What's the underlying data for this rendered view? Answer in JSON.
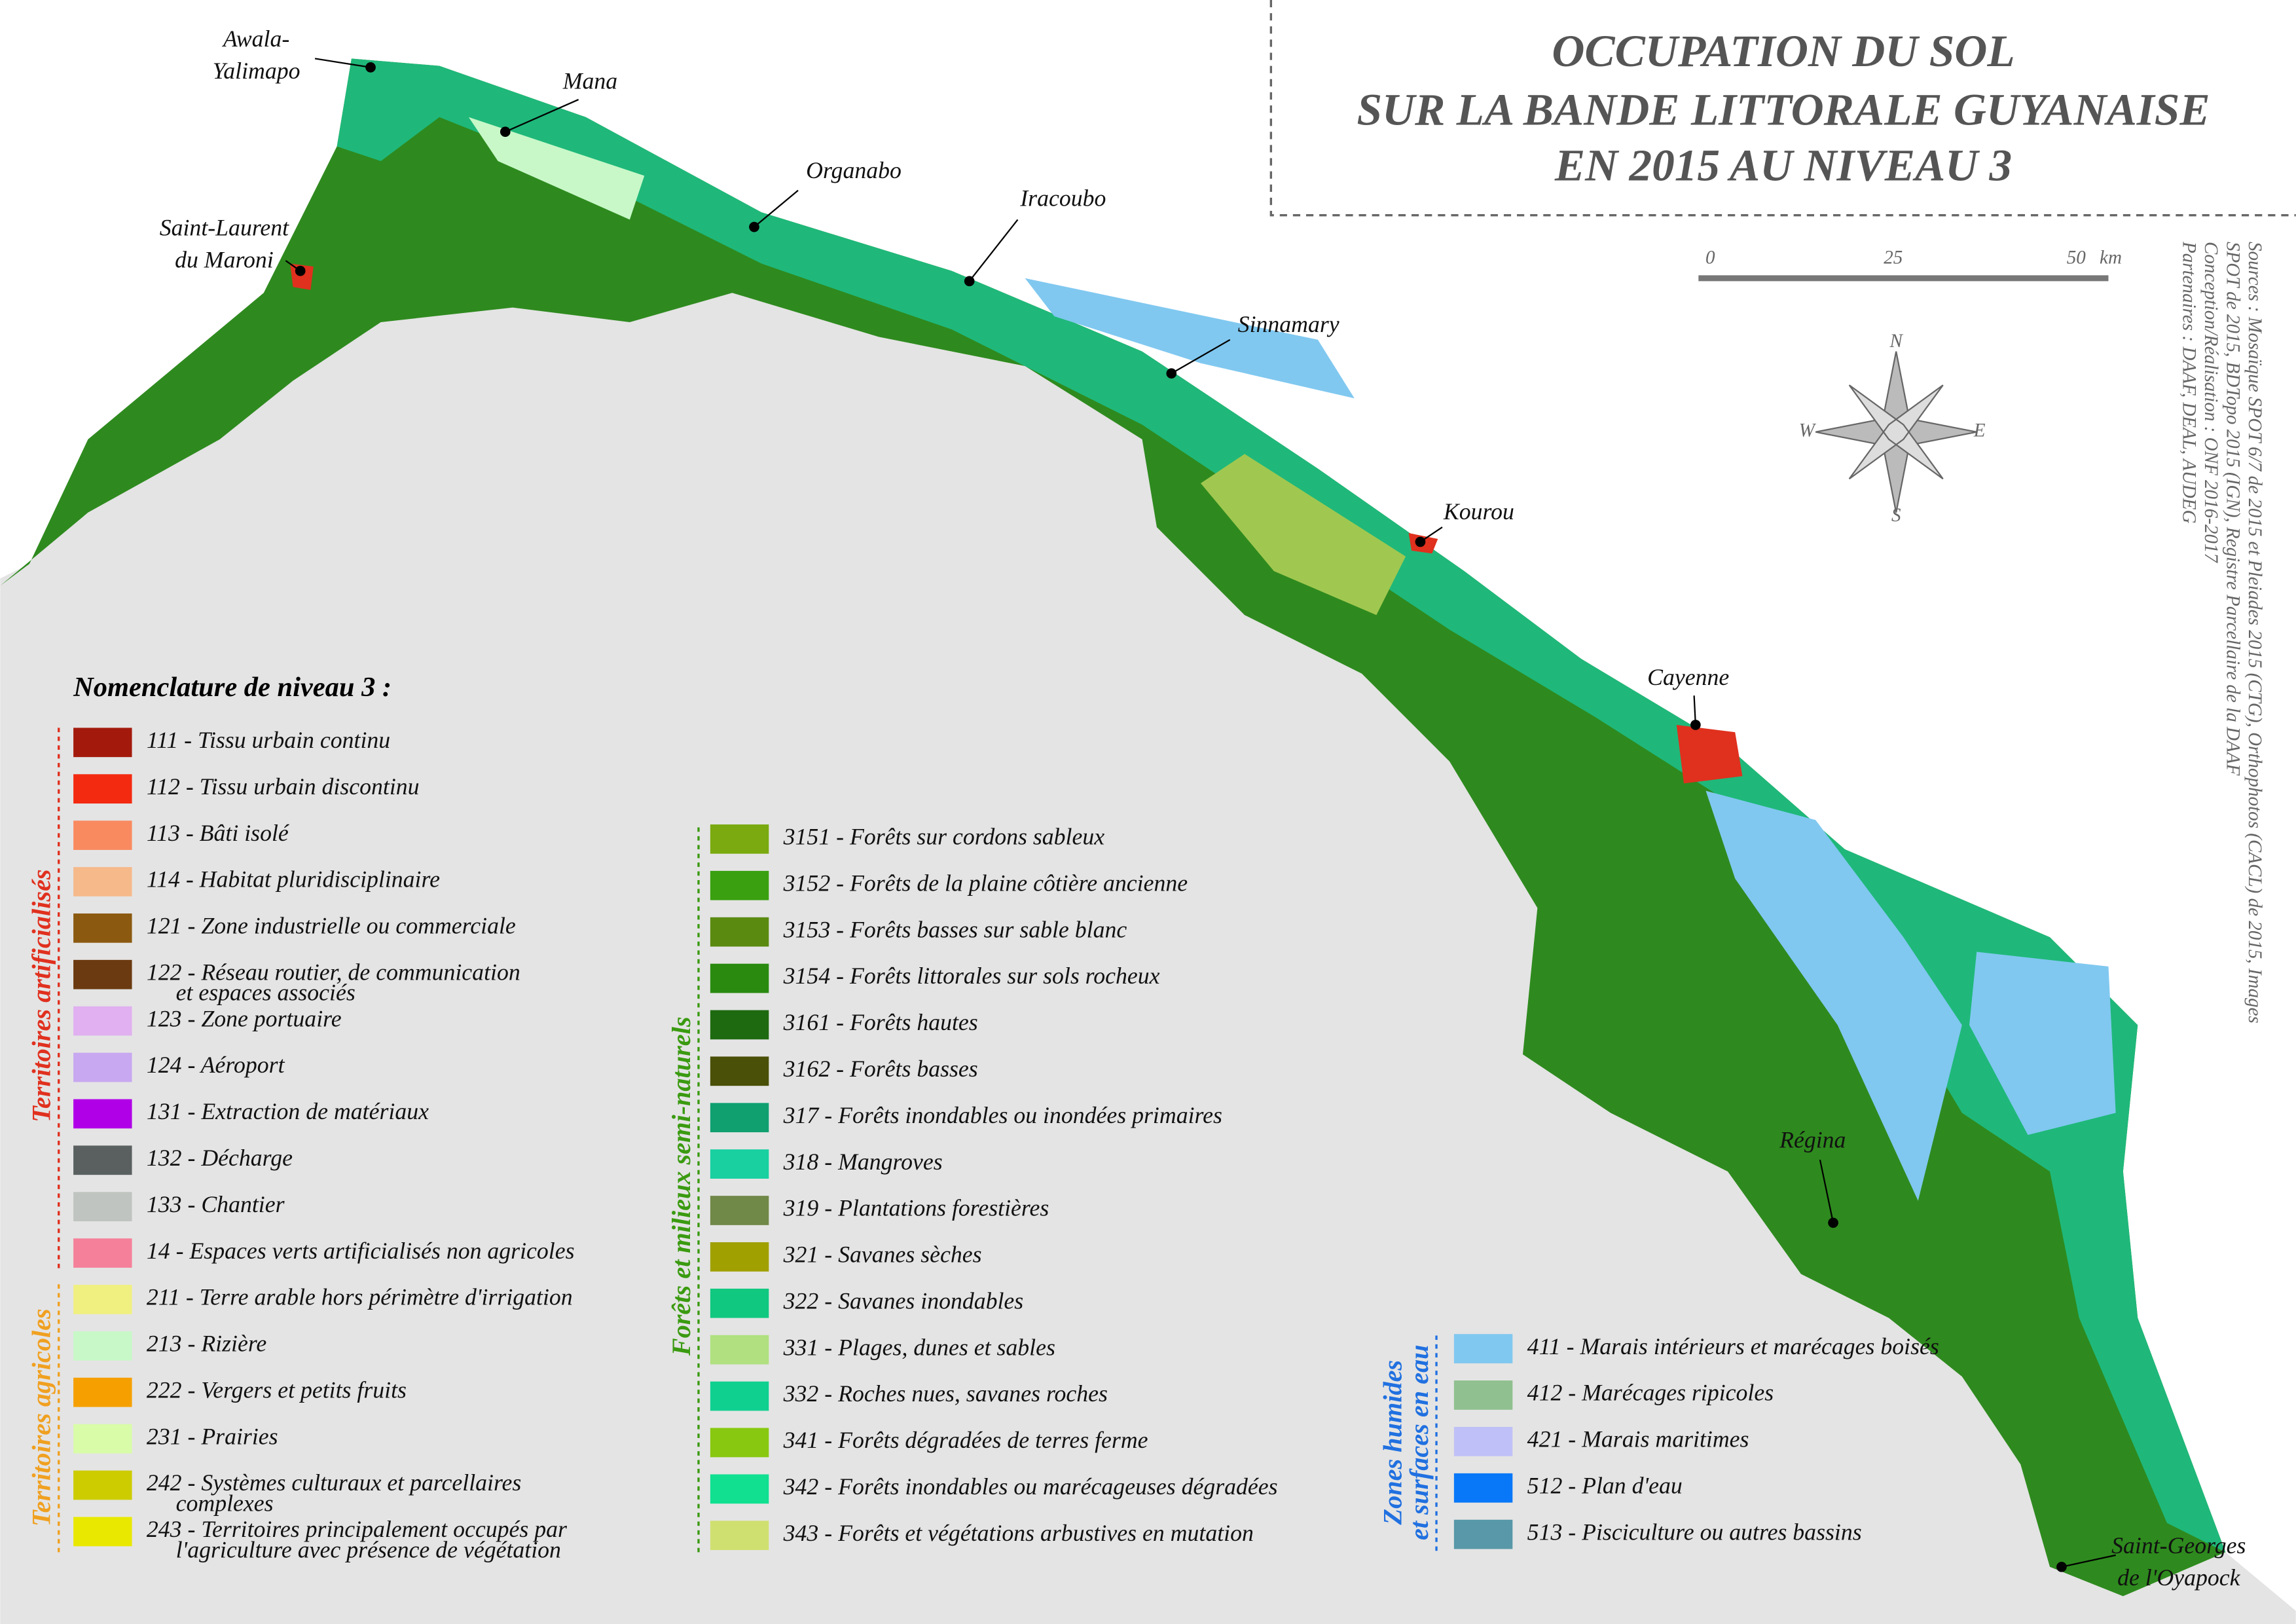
{
  "title": [
    "OCCUPATION DU SOL",
    "SUR LA BANDE LITTORALE GUYANAISE",
    "EN 2015 AU NIVEAU 3"
  ],
  "scale": {
    "labels": [
      "0",
      "25",
      "50"
    ],
    "unit": "km"
  },
  "compass": {
    "n": "N",
    "e": "E",
    "s": "S",
    "w": "W"
  },
  "sources": [
    "Sources : Mosaïque SPOT 6/7 de 2015 et Pleiades 2015 (CTG), Orthophotos (CACL) de 2015, Images",
    "SPOT de 2015, BDTopo 2015 (IGN), Registre Parcellaire de  la DAAF",
    "Conception/Réalisation : ONF 2016-2017",
    "Partenaires : DAAF, DEAL, AUDEG"
  ],
  "towns": [
    {
      "name": [
        "Awala-",
        "Yalimapo"
      ]
    },
    {
      "name": [
        "Mana"
      ]
    },
    {
      "name": [
        "Saint-Laurent",
        "du Maroni"
      ]
    },
    {
      "name": [
        "Organabo"
      ]
    },
    {
      "name": [
        "Iracoubo"
      ]
    },
    {
      "name": [
        "Sinnamary"
      ]
    },
    {
      "name": [
        "Kourou"
      ]
    },
    {
      "name": [
        "Cayenne"
      ]
    },
    {
      "name": [
        "Régina"
      ]
    },
    {
      "name": [
        "Saint-Georges",
        "de l'Oyapock"
      ]
    }
  ],
  "legend": {
    "title": "Nomenclature de niveau 3 :",
    "groups": [
      {
        "label": [
          "Territoires artificialisés"
        ],
        "color": "#e0301e",
        "items": [
          {
            "text": [
              "111 - Tissu urbain continu"
            ],
            "color": "#a31a0c"
          },
          {
            "text": [
              "112 - Tissu urbain discontinu"
            ],
            "color": "#f42a10"
          },
          {
            "text": [
              "113 - Bâti isolé"
            ],
            "color": "#f98a60"
          },
          {
            "text": [
              "114 - Habitat pluridisciplinaire"
            ],
            "color": "#f5b98a"
          },
          {
            "text": [
              "121 - Zone industrielle ou commerciale"
            ],
            "color": "#8b5a10"
          },
          {
            "text": [
              "122 - Réseau routier, de communication",
              "et espaces associés"
            ],
            "color": "#6b3a10"
          },
          {
            "text": [
              "123 - Zone portuaire"
            ],
            "color": "#e0b0f0"
          },
          {
            "text": [
              "124 - Aéroport"
            ],
            "color": "#c8a8f0"
          },
          {
            "text": [
              "131 - Extraction de matériaux"
            ],
            "color": "#b000e8"
          },
          {
            "text": [
              "132 - Décharge"
            ],
            "color": "#5a6060"
          },
          {
            "text": [
              "133 - Chantier"
            ],
            "color": "#c0c4c0"
          },
          {
            "text": [
              "14 - Espaces verts artificialisés non agricoles"
            ],
            "color": "#f5809a"
          }
        ]
      },
      {
        "label": [
          "Territoires agricoles"
        ],
        "color": "#f0a020",
        "items": [
          {
            "text": [
              "211 - Terre arable hors périmètre d'irrigation"
            ],
            "color": "#f0f080"
          },
          {
            "text": [
              "213 - Rizière"
            ],
            "color": "#c8f8c8"
          },
          {
            "text": [
              "222 - Vergers et petits fruits"
            ],
            "color": "#f5a000"
          },
          {
            "text": [
              "231 - Prairies"
            ],
            "color": "#d8fca8"
          },
          {
            "text": [
              "242 - Systèmes culturaux et parcellaires",
              "complexes"
            ],
            "color": "#cccc00"
          },
          {
            "text": [
              "243 - Territoires principalement occupés par",
              "l'agriculture avec présence de végétation"
            ],
            "color": "#e8e800"
          }
        ]
      },
      {
        "label": [
          "Forêts et milieux semi-naturels"
        ],
        "color": "#3a9a10",
        "items": [
          {
            "text": [
              "3151 - Forêts sur cordons sableux"
            ],
            "color": "#7aaa10"
          },
          {
            "text": [
              "3152 - Forêts de la plaine côtière ancienne"
            ],
            "color": "#3aa010"
          },
          {
            "text": [
              "3153 - Forêts basses sur sable blanc"
            ],
            "color": "#5a8a10"
          },
          {
            "text": [
              "3154 - Forêts littorales sur sols rocheux"
            ],
            "color": "#2a8a10"
          },
          {
            "text": [
              "3161 - Forêts hautes"
            ],
            "color": "#1e6a10"
          },
          {
            "text": [
              "3162 - Forêts basses"
            ],
            "color": "#4a5008"
          },
          {
            "text": [
              "317 - Forêts inondables ou inondées primaires"
            ],
            "color": "#10a070"
          },
          {
            "text": [
              "318 - Mangroves"
            ],
            "color": "#18d0a0"
          },
          {
            "text": [
              "319 - Plantations forestières"
            ],
            "color": "#708848"
          },
          {
            "text": [
              "321 - Savanes sèches"
            ],
            "color": "#a0a000"
          },
          {
            "text": [
              "322 - Savanes inondables"
            ],
            "color": "#10c880"
          },
          {
            "text": [
              "331 - Plages, dunes et sables"
            ],
            "color": "#b0e080"
          },
          {
            "text": [
              "332 - Roches nues, savanes roches"
            ],
            "color": "#10d090"
          },
          {
            "text": [
              "341 - Forêts dégradées de terres ferme"
            ],
            "color": "#88c810"
          },
          {
            "text": [
              "342 - Forêts inondables ou marécageuses dégradées"
            ],
            "color": "#10e090"
          },
          {
            "text": [
              "343 - Forêts et végétations arbustives en mutation"
            ],
            "color": "#d0e070"
          }
        ]
      },
      {
        "label": [
          "Zones humides",
          "et surfaces en eau"
        ],
        "color": "#2070e0",
        "items": [
          {
            "text": [
              "411 - Marais intérieurs et marécages boisés"
            ],
            "color": "#80c8f0"
          },
          {
            "text": [
              "412 - Marécages ripicoles"
            ],
            "color": "#90c090"
          },
          {
            "text": [
              "421 - Marais maritimes"
            ],
            "color": "#c0c0f8"
          },
          {
            "text": [
              "512 - Plan d'eau"
            ],
            "color": "#0878f8"
          },
          {
            "text": [
              "513 - Pisciculture ou autres bassins"
            ],
            "color": "#5898a8"
          }
        ]
      }
    ]
  }
}
